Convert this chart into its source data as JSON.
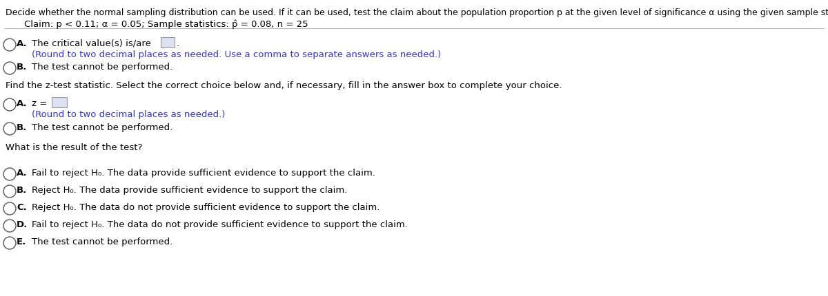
{
  "bg_color": "#ffffff",
  "text_color": "#000000",
  "blue_color": "#3333cc",
  "circle_edge": "#555555",
  "header_line1": "Decide whether the normal sampling distribution can be used. If it can be used, test the claim about the population proportion p at the given level of significance α using the given sample statistics.",
  "header_line2": "Claim: p < 0.11; α = 0.05; Sample statistics: p̂ = 0.08, n = 25",
  "section1_prompt": "The critical value(s) is/are",
  "section1_note": "(Round to two decimal places as needed. Use a comma to separate answers as needed.)",
  "section1b_text": "The test cannot be performed.",
  "section2_header": "Find the z-test statistic. Select the correct choice below and, if necessary, fill in the answer box to complete your choice.",
  "section2a_text": "z =",
  "section2a_note": "(Round to two decimal places as needed.)",
  "section2b_text": "The test cannot be performed.",
  "section3_header": "What is the result of the test?",
  "options": [
    "Fail to reject H₀. The data provide sufficient evidence to support the claim.",
    "Reject H₀. The data provide sufficient evidence to support the claim.",
    "Reject H₀. The data do not provide sufficient evidence to support the claim.",
    "Fail to reject H₀. The data do not provide sufficient evidence to support the claim.",
    "The test cannot be performed."
  ],
  "option_labels": [
    "A.",
    "B.",
    "C.",
    "D.",
    "E."
  ],
  "fig_width": 12.0,
  "fig_height": 4.31,
  "dpi": 100
}
